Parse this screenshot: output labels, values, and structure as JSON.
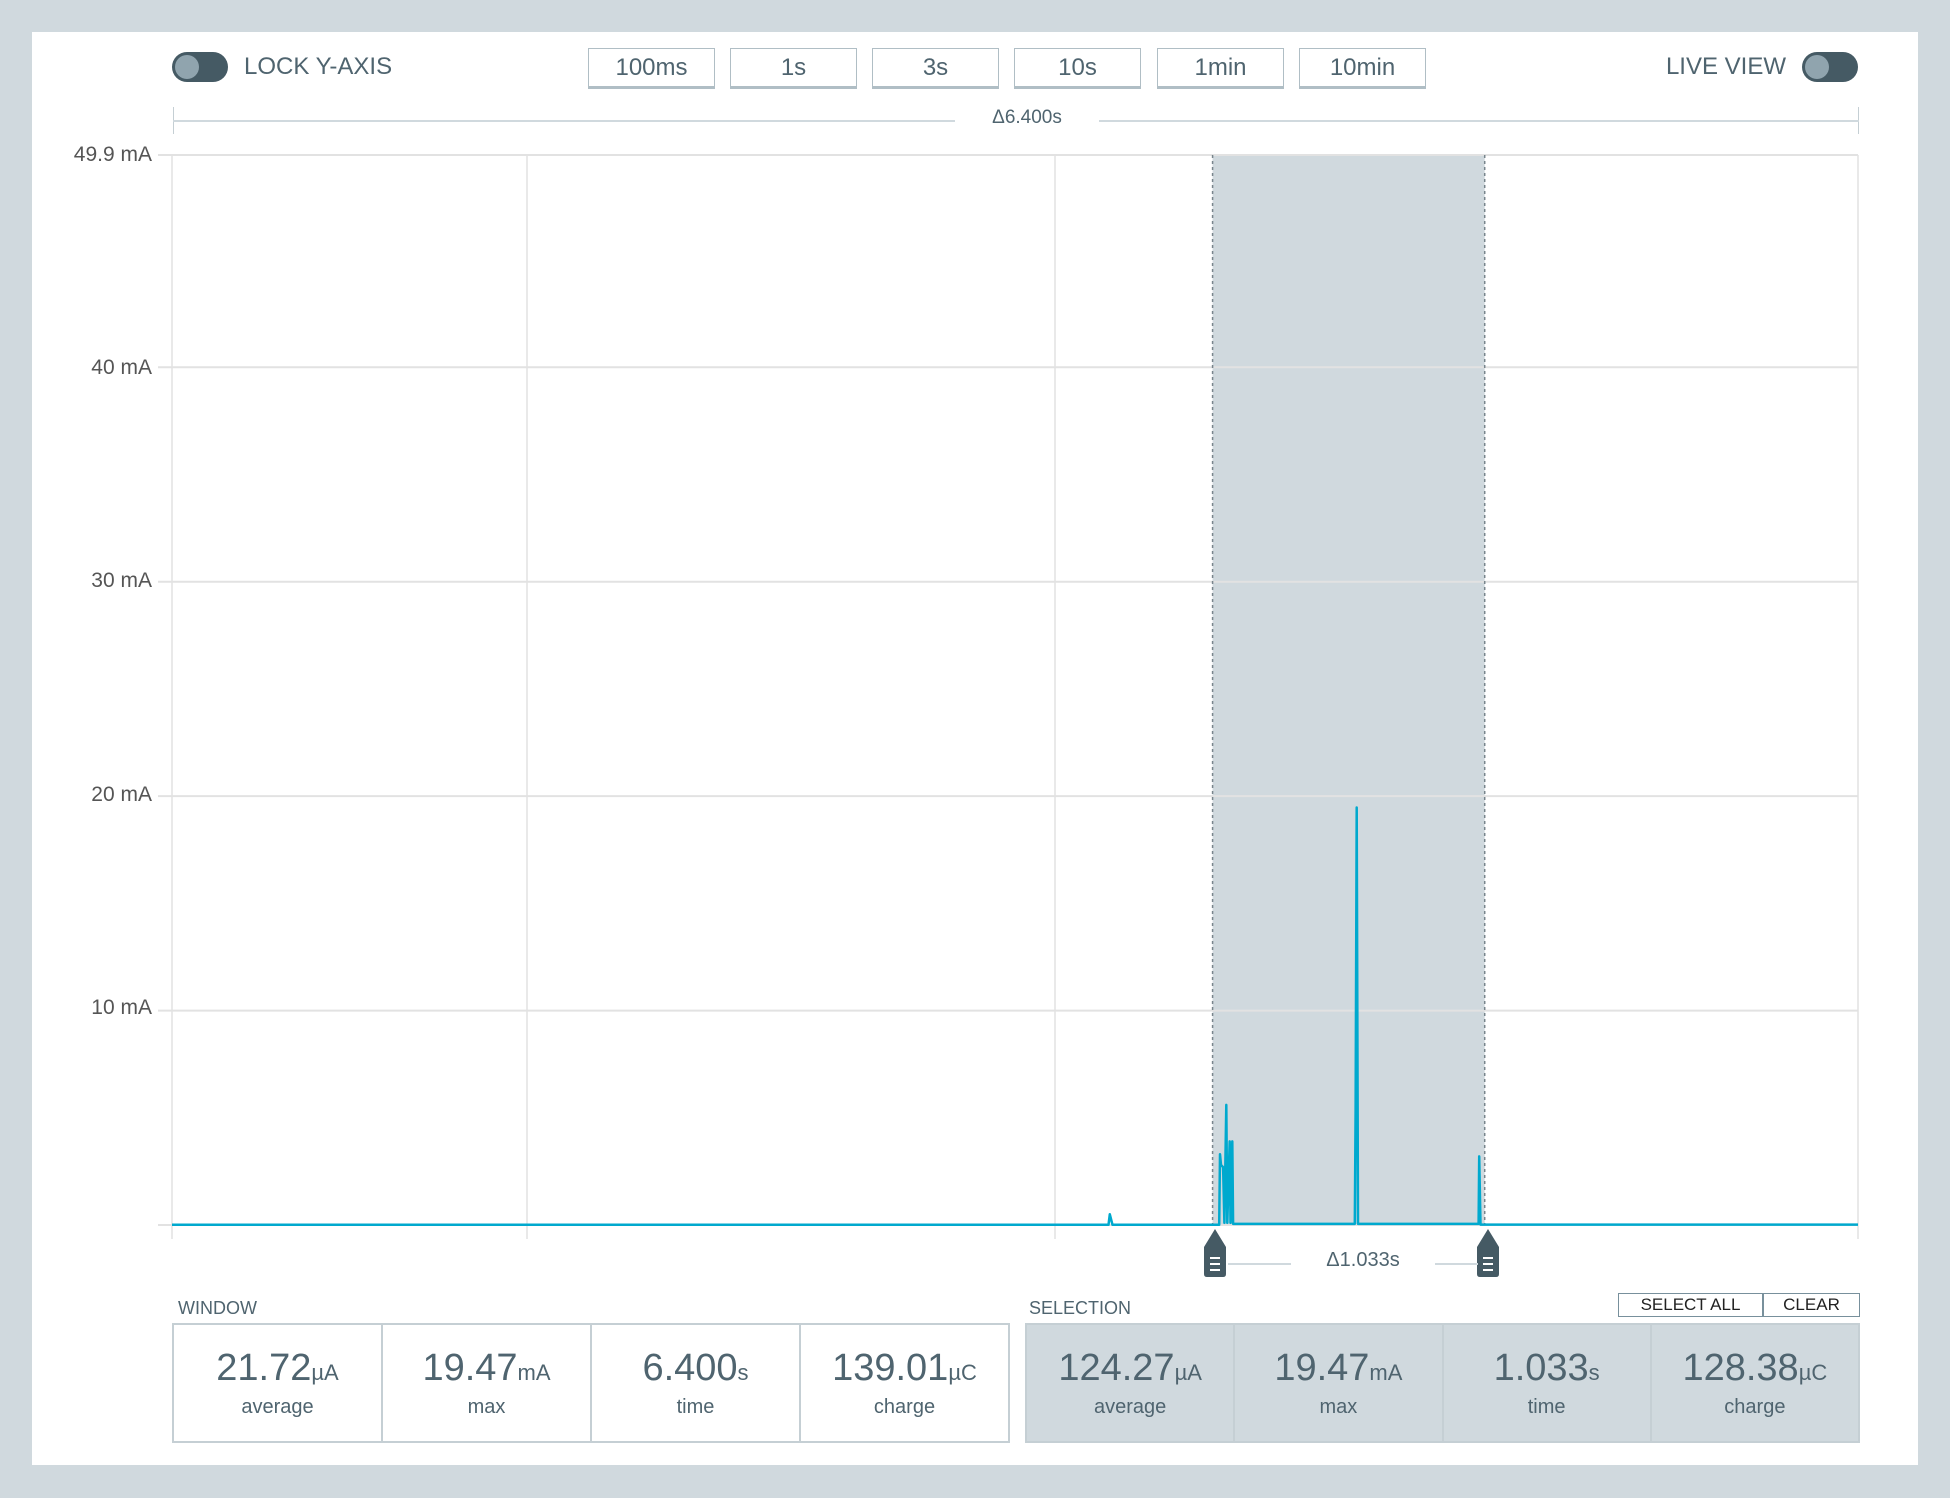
{
  "toolbar": {
    "lock_y_axis_label": "LOCK Y-AXIS",
    "lock_y_axis_on": false,
    "live_view_label": "LIVE VIEW",
    "live_view_on": false,
    "window_buttons": [
      "100ms",
      "1s",
      "3s",
      "10s",
      "1min",
      "10min"
    ]
  },
  "window_delta": "Δ6.400s",
  "selection_delta": "Δ1.033s",
  "colors": {
    "trace": "#00a9ce",
    "selection": "#d0d9de",
    "accent": "#455a64"
  },
  "chart_data": {
    "type": "line",
    "xlabel": "",
    "ylabel": "",
    "xlim": [
      0,
      6.4
    ],
    "ylim": [
      0,
      49.9
    ],
    "y_ticks": [
      "49.9 mA",
      "40 mA",
      "30 mA",
      "20 mA",
      "10 mA"
    ],
    "y_tick_values": [
      49.9,
      40,
      30,
      20,
      10
    ],
    "grid": true,
    "selection": [
      3.95,
      4.983
    ],
    "x": [
      0,
      3.555,
      3.56,
      3.57,
      3.975,
      3.978,
      3.982,
      3.99,
      3.995,
      4.002,
      4.006,
      4.015,
      4.018,
      4.025,
      4.028,
      4.49,
      4.493,
      4.497,
      4.502,
      4.96,
      4.962,
      4.967,
      6.4
    ],
    "y": [
      0.01,
      0.01,
      0.5,
      0.01,
      0.01,
      3.3,
      2.8,
      2.7,
      0.1,
      5.6,
      0.1,
      3.9,
      0.1,
      3.9,
      0.05,
      0.05,
      5.3,
      19.47,
      0.05,
      0.05,
      3.2,
      0.02,
      0.02
    ]
  },
  "window_stats": {
    "title": "WINDOW",
    "items": [
      {
        "value": "21.72",
        "unit": "µA",
        "label": "average"
      },
      {
        "value": "19.47",
        "unit": "mA",
        "label": "max"
      },
      {
        "value": "6.400",
        "unit": "s",
        "label": "time"
      },
      {
        "value": "139.01",
        "unit": "µC",
        "label": "charge"
      }
    ]
  },
  "selection_stats": {
    "title": "SELECTION",
    "select_all_label": "SELECT ALL",
    "clear_label": "CLEAR",
    "items": [
      {
        "value": "124.27",
        "unit": "µA",
        "label": "average"
      },
      {
        "value": "19.47",
        "unit": "mA",
        "label": "max"
      },
      {
        "value": "1.033",
        "unit": "s",
        "label": "time"
      },
      {
        "value": "128.38",
        "unit": "µC",
        "label": "charge"
      }
    ]
  }
}
